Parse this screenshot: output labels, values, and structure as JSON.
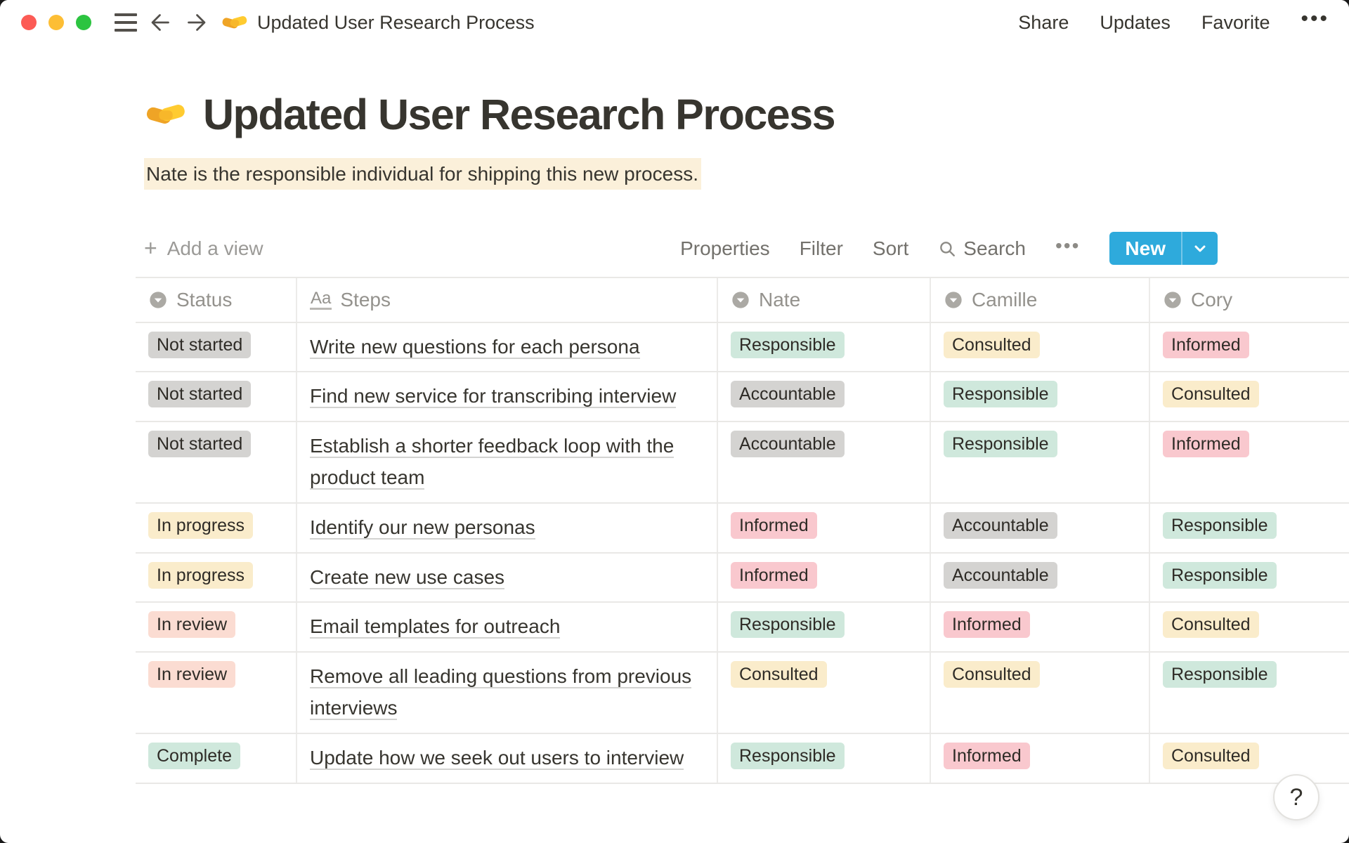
{
  "window": {
    "title": "Updated User Research Process",
    "share_label": "Share",
    "updates_label": "Updates",
    "favorite_label": "Favorite",
    "more_label": "•••"
  },
  "page": {
    "icon": "handshake",
    "title": "Updated User Research Process",
    "callout": "Nate is the responsible individual for shipping this new process."
  },
  "toolbar": {
    "add_view_label": "Add a view",
    "properties_label": "Properties",
    "filter_label": "Filter",
    "sort_label": "Sort",
    "search_label": "Search",
    "more_label": "•••",
    "new_label": "New"
  },
  "colors": {
    "accent_blue": "#2EAADC",
    "highlight_yellow": "#FBF0DA",
    "tag_gray": "#D4D3D1",
    "tag_yellow": "#FAECCB",
    "tag_green": "#CFE8DC",
    "tag_pink": "#F9C8CE",
    "tag_salmon": "#FBDCD2"
  },
  "table": {
    "columns": [
      {
        "label": "Status",
        "icon": "select-property-icon"
      },
      {
        "label": "Steps",
        "icon": "text-property-icon"
      },
      {
        "label": "Nate",
        "icon": "select-property-icon"
      },
      {
        "label": "Camille",
        "icon": "select-property-icon"
      },
      {
        "label": "Cory",
        "icon": "select-property-icon"
      }
    ],
    "rows": [
      {
        "status": "Not started",
        "status_color": "gray",
        "step": "Write new questions for each persona",
        "people": [
          [
            "Responsible",
            "green"
          ],
          [
            "Consulted",
            "yellow"
          ],
          [
            "Informed",
            "pink"
          ]
        ]
      },
      {
        "status": "Not started",
        "status_color": "gray",
        "step": "Find new service for transcribing interview",
        "people": [
          [
            "Accountable",
            "gray"
          ],
          [
            "Responsible",
            "green"
          ],
          [
            "Consulted",
            "yellow"
          ]
        ]
      },
      {
        "status": "Not started",
        "status_color": "gray",
        "step": "Establish a shorter feedback loop with the product team",
        "people": [
          [
            "Accountable",
            "gray"
          ],
          [
            "Responsible",
            "green"
          ],
          [
            "Informed",
            "pink"
          ]
        ]
      },
      {
        "status": "In progress",
        "status_color": "yellow",
        "step": "Identify our new personas",
        "people": [
          [
            "Informed",
            "pink"
          ],
          [
            "Accountable",
            "gray"
          ],
          [
            "Responsible",
            "green"
          ]
        ]
      },
      {
        "status": "In progress",
        "status_color": "yellow",
        "step": "Create new use cases",
        "people": [
          [
            "Informed",
            "pink"
          ],
          [
            "Accountable",
            "gray"
          ],
          [
            "Responsible",
            "green"
          ]
        ]
      },
      {
        "status": "In review",
        "status_color": "salmon",
        "step": "Email templates for outreach",
        "people": [
          [
            "Responsible",
            "green"
          ],
          [
            "Informed",
            "pink"
          ],
          [
            "Consulted",
            "yellow"
          ]
        ]
      },
      {
        "status": "In review",
        "status_color": "salmon",
        "step": "Remove all leading questions from previous interviews",
        "people": [
          [
            "Consulted",
            "yellow"
          ],
          [
            "Consulted",
            "yellow"
          ],
          [
            "Responsible",
            "green"
          ]
        ]
      },
      {
        "status": "Complete",
        "status_color": "green",
        "step": "Update how we seek out users to interview",
        "people": [
          [
            "Responsible",
            "green"
          ],
          [
            "Informed",
            "pink"
          ],
          [
            "Consulted",
            "yellow"
          ]
        ]
      }
    ]
  },
  "help": {
    "label": "?"
  }
}
